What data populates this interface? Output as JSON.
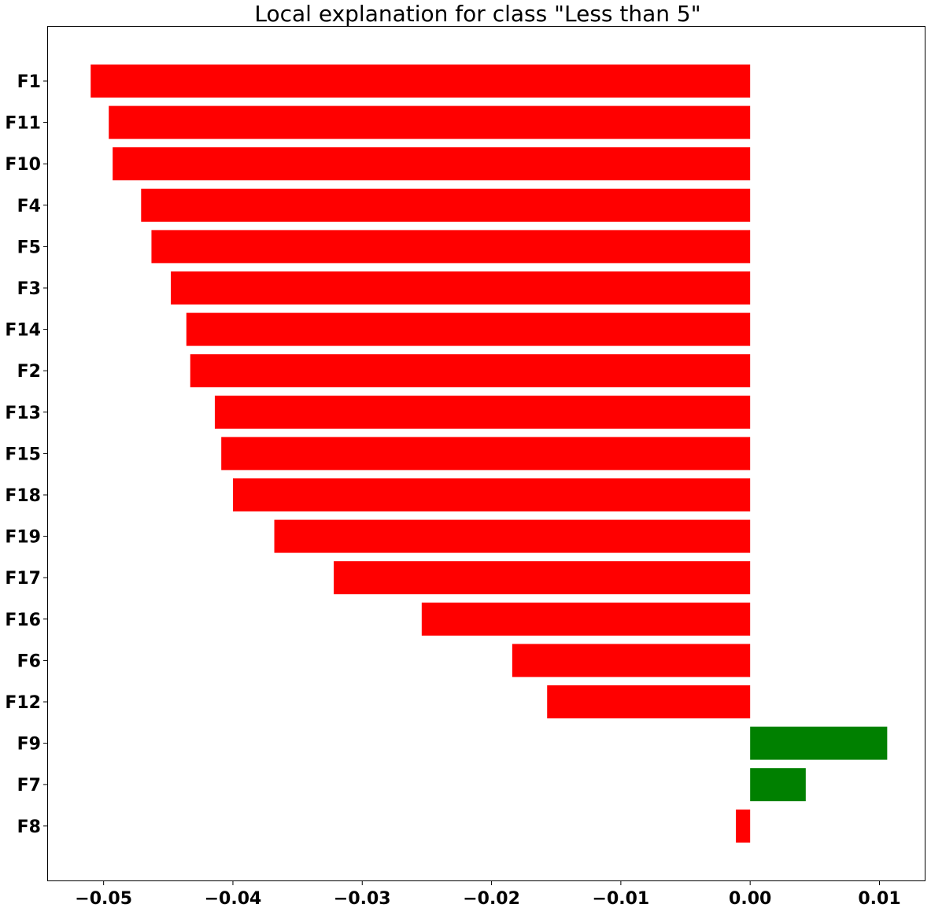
{
  "chart_data": {
    "type": "bar",
    "orientation": "horizontal",
    "title": "Local explanation for class \"Less than 5\"",
    "xlabel": "",
    "ylabel": "",
    "categories": [
      "F1",
      "F11",
      "F10",
      "F4",
      "F5",
      "F3",
      "F14",
      "F2",
      "F13",
      "F15",
      "F18",
      "F19",
      "F17",
      "F16",
      "F6",
      "F12",
      "F9",
      "F7",
      "F8"
    ],
    "values": [
      -0.051,
      -0.0496,
      -0.0493,
      -0.0471,
      -0.0463,
      -0.0448,
      -0.0436,
      -0.0433,
      -0.0414,
      -0.0409,
      -0.04,
      -0.0368,
      -0.0322,
      -0.0254,
      -0.0184,
      -0.0157,
      0.0106,
      0.0043,
      -0.0011
    ],
    "xlim": [
      -0.0543,
      0.0135
    ],
    "xticks": [
      -0.05,
      -0.04,
      -0.03,
      -0.02,
      -0.01,
      0.0,
      0.01
    ],
    "xtick_labels": [
      "−0.05",
      "−0.04",
      "−0.03",
      "−0.02",
      "−0.01",
      "0.00",
      "0.01"
    ],
    "grid": false,
    "colors": {
      "negative": "#ff0000",
      "positive": "#008000"
    }
  }
}
